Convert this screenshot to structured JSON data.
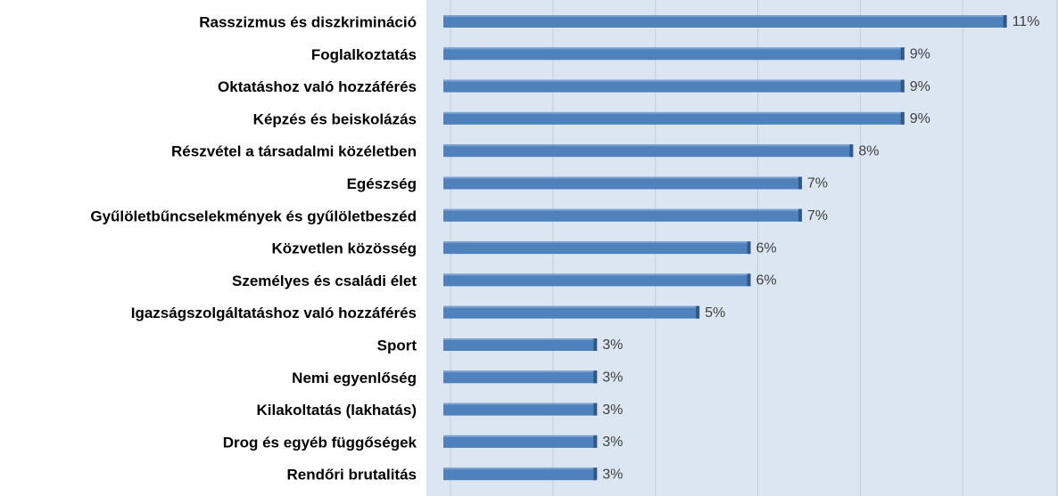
{
  "chart_data": {
    "type": "bar",
    "orientation": "horizontal",
    "categories": [
      "Rasszizmus és diszkrimináció",
      "Foglalkoztatás",
      "Oktatáshoz való hozzáférés",
      "Képzés és beiskolázás",
      "Részvétel a társadalmi közéletben",
      "Egészség",
      "Gyűlöletbűncselekmények és gyűlöletbeszéd",
      "Közvetlen közösség",
      "Személyes és családi élet",
      "Igazságszolgáltatáshoz való hozzáférés",
      "Sport",
      "Nemi egyenlőség",
      "Kilakoltatás (lakhatás)",
      "Drog és egyéb függőségek",
      "Rendőri brutalitás"
    ],
    "values": [
      11,
      9,
      9,
      9,
      8,
      7,
      7,
      6,
      6,
      5,
      3,
      3,
      3,
      3,
      3
    ],
    "value_labels": [
      "11%",
      "9%",
      "9%",
      "9%",
      "8%",
      "7%",
      "7%",
      "6%",
      "6%",
      "5%",
      "3%",
      "3%",
      "3%",
      "3%",
      "3%"
    ],
    "color": "#4f81bd",
    "xlim": [
      0,
      12
    ],
    "xticks": [
      0,
      2,
      4,
      6,
      8,
      10,
      12
    ],
    "grid": true
  }
}
